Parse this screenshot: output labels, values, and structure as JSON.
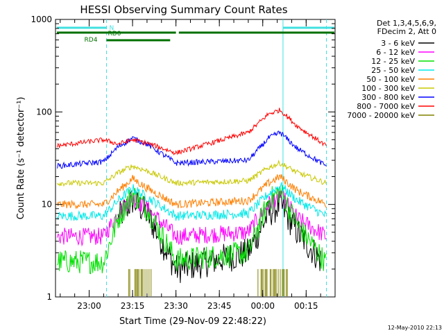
{
  "chart_data": {
    "type": "line",
    "title": "HESSI Observing Summary Count Rates",
    "xlabel": "Start Time (29-Nov-09 22:48:22)",
    "ylabel": "Count Rate (s⁻¹ detector⁻¹)",
    "x_scale": "time",
    "y_scale": "log",
    "xlim": [
      "22:48:22",
      "00:25:00"
    ],
    "ylim": [
      1,
      1000
    ],
    "x_ticks": [
      "23:00",
      "23:15",
      "23:30",
      "23:45",
      "00:00",
      "00:15"
    ],
    "y_ticks": [
      "1",
      "10",
      "100",
      "1000"
    ],
    "legend_header": [
      "Det 1,3,4,5,6,9,",
      "FDecim 2, Att 0"
    ],
    "legend_position": "top-right",
    "grid": false,
    "footer_date": "12-May-2010 22:13",
    "flags": [
      {
        "label": "N",
        "color": "#40e0e0"
      },
      {
        "label": "RD0",
        "color": "#007000"
      },
      {
        "label": "RD4",
        "color": "#007000"
      }
    ],
    "series": [
      {
        "name": "3 - 6 keV",
        "color": "#000000",
        "values": [
          {
            "time": "23:10",
            "rate": 7
          },
          {
            "time": "23:15",
            "rate": 11
          },
          {
            "time": "23:20",
            "rate": 8
          },
          {
            "time": "23:30",
            "rate": 2
          },
          {
            "time": "23:55",
            "rate": 3
          },
          {
            "time": "00:02",
            "rate": 8
          },
          {
            "time": "00:06",
            "rate": 10
          },
          {
            "time": "00:12",
            "rate": 5
          },
          {
            "time": "00:20",
            "rate": 2.5
          }
        ]
      },
      {
        "name": "6 - 12 keV",
        "color": "#ff00ff",
        "values": [
          {
            "time": "22:49",
            "rate": 4.5
          },
          {
            "time": "23:05",
            "rate": 4.5
          },
          {
            "time": "23:10",
            "rate": 8
          },
          {
            "time": "23:15",
            "rate": 12
          },
          {
            "time": "23:20",
            "rate": 9
          },
          {
            "time": "23:30",
            "rate": 4.5
          },
          {
            "time": "23:55",
            "rate": 5
          },
          {
            "time": "00:02",
            "rate": 10
          },
          {
            "time": "00:06",
            "rate": 13
          },
          {
            "time": "00:12",
            "rate": 7
          },
          {
            "time": "00:22",
            "rate": 4.5
          }
        ]
      },
      {
        "name": "12 - 25 keV",
        "color": "#00e000",
        "values": [
          {
            "time": "22:49",
            "rate": 2.4
          },
          {
            "time": "23:05",
            "rate": 2.4
          },
          {
            "time": "23:10",
            "rate": 7
          },
          {
            "time": "23:15",
            "rate": 13
          },
          {
            "time": "23:20",
            "rate": 9
          },
          {
            "time": "23:30",
            "rate": 2.5
          },
          {
            "time": "23:55",
            "rate": 3
          },
          {
            "time": "00:02",
            "rate": 11
          },
          {
            "time": "00:06",
            "rate": 14
          },
          {
            "time": "00:12",
            "rate": 6
          },
          {
            "time": "00:22",
            "rate": 2.3
          }
        ]
      },
      {
        "name": "25 - 50 keV",
        "color": "#00e8e8",
        "values": [
          {
            "time": "22:49",
            "rate": 7.5
          },
          {
            "time": "23:05",
            "rate": 7.5
          },
          {
            "time": "23:10",
            "rate": 11
          },
          {
            "time": "23:15",
            "rate": 15
          },
          {
            "time": "23:20",
            "rate": 12
          },
          {
            "time": "23:30",
            "rate": 7.5
          },
          {
            "time": "23:55",
            "rate": 8
          },
          {
            "time": "00:02",
            "rate": 13
          },
          {
            "time": "00:06",
            "rate": 16
          },
          {
            "time": "00:12",
            "rate": 11
          },
          {
            "time": "00:22",
            "rate": 7.5
          }
        ]
      },
      {
        "name": "50 - 100 keV",
        "color": "#ff7f00",
        "values": [
          {
            "time": "22:49",
            "rate": 10
          },
          {
            "time": "23:05",
            "rate": 10
          },
          {
            "time": "23:10",
            "rate": 14
          },
          {
            "time": "23:15",
            "rate": 19
          },
          {
            "time": "23:20",
            "rate": 15
          },
          {
            "time": "23:30",
            "rate": 10
          },
          {
            "time": "23:55",
            "rate": 11
          },
          {
            "time": "00:02",
            "rate": 17
          },
          {
            "time": "00:06",
            "rate": 20
          },
          {
            "time": "00:12",
            "rate": 14
          },
          {
            "time": "00:22",
            "rate": 10
          }
        ]
      },
      {
        "name": "100 - 300 keV",
        "color": "#c8c800",
        "values": [
          {
            "time": "22:49",
            "rate": 17
          },
          {
            "time": "23:05",
            "rate": 17
          },
          {
            "time": "23:10",
            "rate": 22
          },
          {
            "time": "23:15",
            "rate": 26
          },
          {
            "time": "23:20",
            "rate": 23
          },
          {
            "time": "23:30",
            "rate": 17
          },
          {
            "time": "23:55",
            "rate": 18
          },
          {
            "time": "00:02",
            "rate": 25
          },
          {
            "time": "00:06",
            "rate": 28
          },
          {
            "time": "00:12",
            "rate": 22
          },
          {
            "time": "00:22",
            "rate": 17
          }
        ]
      },
      {
        "name": "300 - 800 keV",
        "color": "#0000ff",
        "values": [
          {
            "time": "22:49",
            "rate": 26
          },
          {
            "time": "23:05",
            "rate": 29
          },
          {
            "time": "23:10",
            "rate": 42
          },
          {
            "time": "23:15",
            "rate": 52
          },
          {
            "time": "23:20",
            "rate": 45
          },
          {
            "time": "23:30",
            "rate": 28
          },
          {
            "time": "23:55",
            "rate": 30
          },
          {
            "time": "00:02",
            "rate": 52
          },
          {
            "time": "00:06",
            "rate": 60
          },
          {
            "time": "00:12",
            "rate": 40
          },
          {
            "time": "00:22",
            "rate": 26
          }
        ]
      },
      {
        "name": "800 - 7000 keV",
        "color": "#ff0000",
        "values": [
          {
            "time": "22:49",
            "rate": 43
          },
          {
            "time": "23:05",
            "rate": 50
          },
          {
            "time": "23:10",
            "rate": 45
          },
          {
            "time": "23:15",
            "rate": 50
          },
          {
            "time": "23:20",
            "rate": 46
          },
          {
            "time": "23:30",
            "rate": 36
          },
          {
            "time": "23:55",
            "rate": 60
          },
          {
            "time": "00:02",
            "rate": 95
          },
          {
            "time": "00:06",
            "rate": 105
          },
          {
            "time": "00:12",
            "rate": 70
          },
          {
            "time": "00:22",
            "rate": 43
          }
        ]
      },
      {
        "name": "7000 - 20000 keV",
        "color": "#808000",
        "values": [
          {
            "time": "23:15",
            "rate": 2
          },
          {
            "time": "23:20",
            "rate": 2
          },
          {
            "time": "00:00",
            "rate": 2
          },
          {
            "time": "00:08",
            "rate": 2
          }
        ]
      }
    ]
  }
}
